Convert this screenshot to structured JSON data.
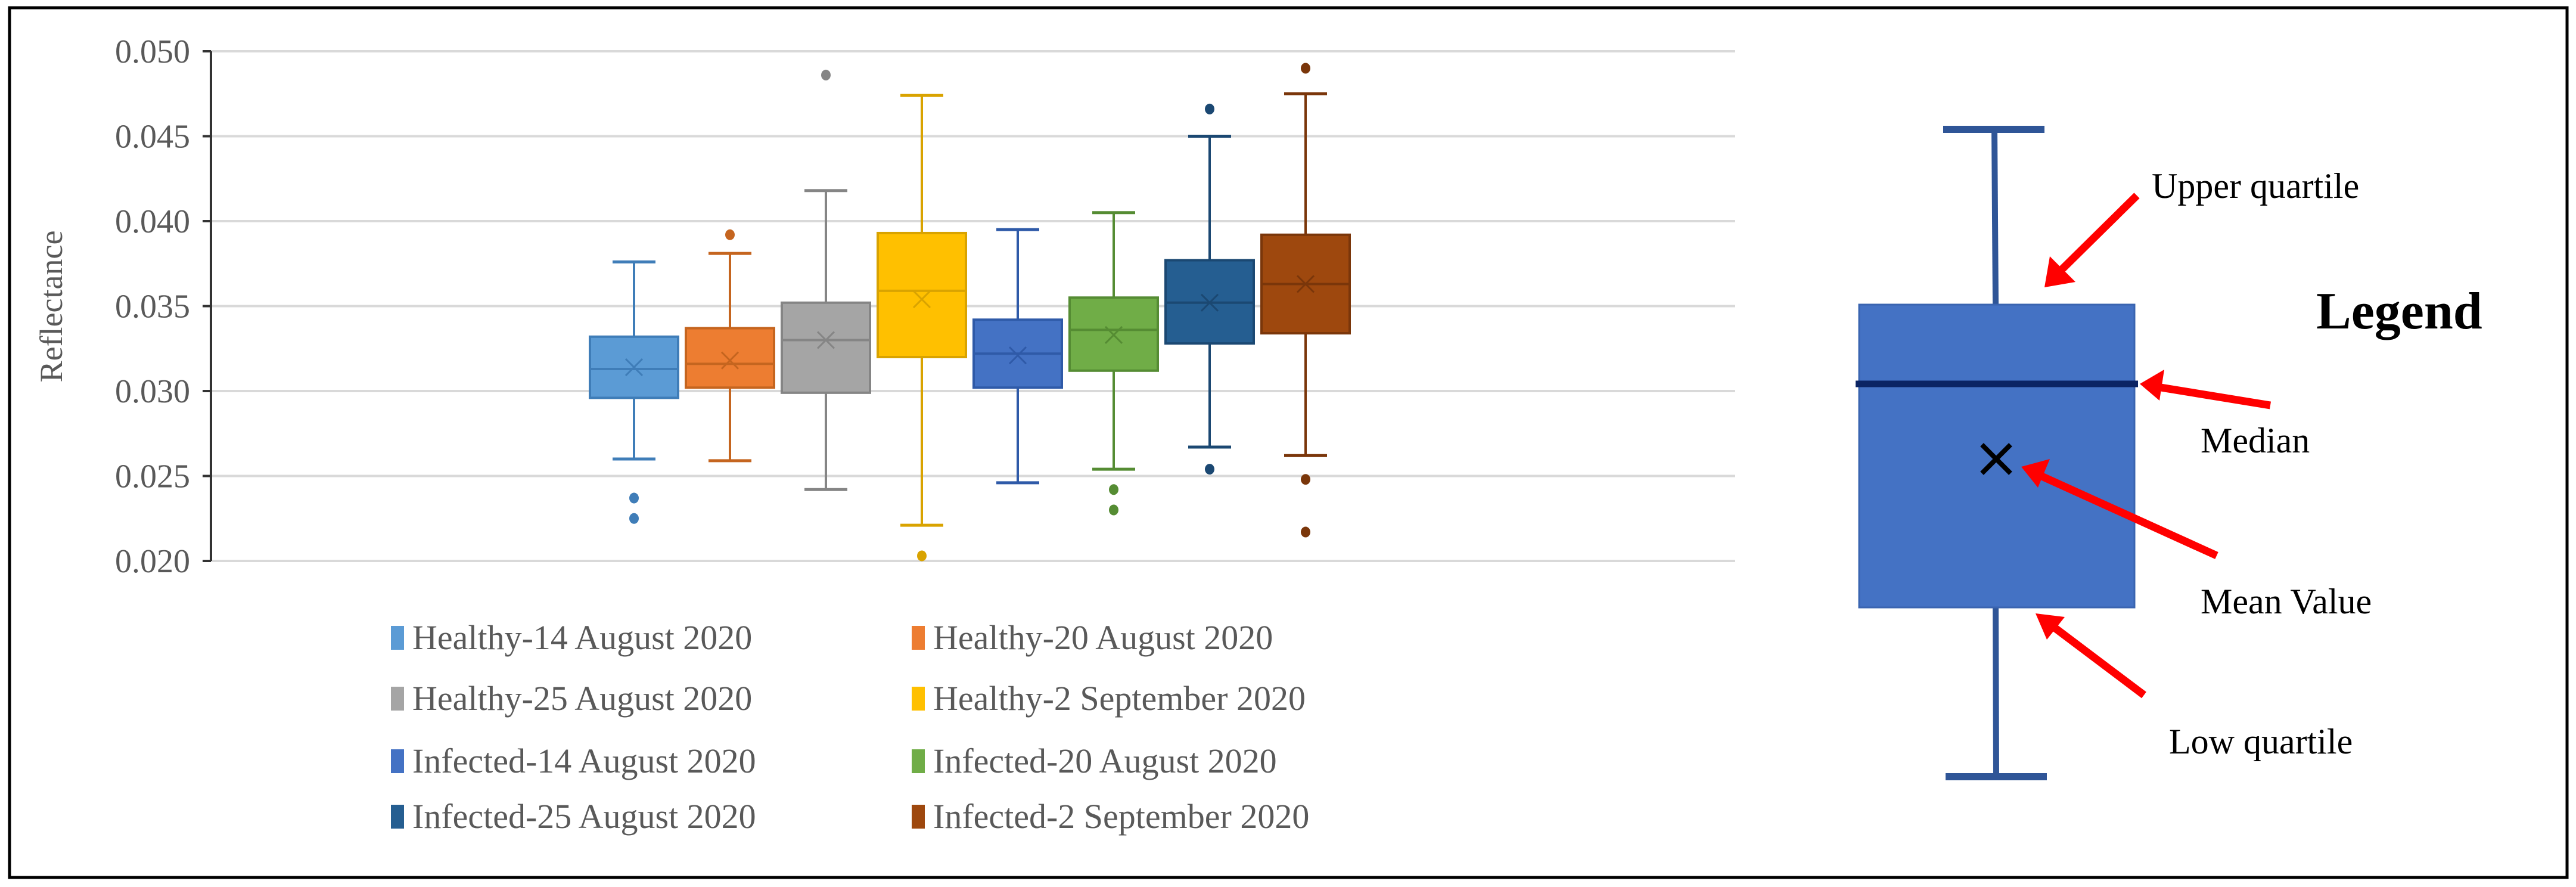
{
  "chart_data": {
    "type": "box",
    "title": "",
    "xlabel": "",
    "ylabel": "Reflectance",
    "ylim": [
      0.02,
      0.05
    ],
    "yticks": [
      "0.050",
      "0.045",
      "0.040",
      "0.035",
      "0.030",
      "0.025",
      "0.020"
    ],
    "grid": true,
    "legend_position": "bottom",
    "series": [
      {
        "name": "Healthy-14 August 2020",
        "color": "#5B9BD5",
        "line": "#3F7DB8",
        "min": 0.026,
        "q1": 0.0296,
        "median": 0.0313,
        "mean": 0.0314,
        "q3": 0.0332,
        "max": 0.0376,
        "outliers": [
          0.0237,
          0.0225
        ]
      },
      {
        "name": "Healthy-20 August 2020",
        "color": "#ED7D31",
        "line": "#C5651F",
        "min": 0.0259,
        "q1": 0.0302,
        "median": 0.0316,
        "mean": 0.0318,
        "q3": 0.0337,
        "max": 0.0381,
        "outliers": [
          0.0392
        ]
      },
      {
        "name": "Healthy-25 August 2020",
        "color": "#A5A5A5",
        "line": "#858585",
        "min": 0.0242,
        "q1": 0.0299,
        "median": 0.033,
        "mean": 0.033,
        "q3": 0.0352,
        "max": 0.0418,
        "outliers": [
          0.0486
        ]
      },
      {
        "name": "Healthy-2 September 2020",
        "color": "#FFC000",
        "line": "#D9A300",
        "min": 0.0221,
        "q1": 0.032,
        "median": 0.0359,
        "mean": 0.0354,
        "q3": 0.0393,
        "max": 0.0474,
        "outliers": [
          0.0203
        ]
      },
      {
        "name": "Infected-14 August 2020",
        "color": "#4472C4",
        "line": "#2F5AA8",
        "min": 0.0246,
        "q1": 0.0302,
        "median": 0.0322,
        "mean": 0.0321,
        "q3": 0.0342,
        "max": 0.0395,
        "outliers": []
      },
      {
        "name": "Infected-20 August 2020",
        "color": "#70AD47",
        "line": "#558C33",
        "min": 0.0254,
        "q1": 0.0312,
        "median": 0.0336,
        "mean": 0.0333,
        "q3": 0.0355,
        "max": 0.0405,
        "outliers": [
          0.0242,
          0.023
        ]
      },
      {
        "name": "Infected-25 August 2020",
        "color": "#255E91",
        "line": "#1B4872",
        "min": 0.0267,
        "q1": 0.0328,
        "median": 0.0352,
        "mean": 0.0352,
        "q3": 0.0377,
        "max": 0.045,
        "outliers": [
          0.0466,
          0.0254
        ]
      },
      {
        "name": "Infected-2 September 2020",
        "color": "#9E480E",
        "line": "#7A360A",
        "min": 0.0262,
        "q1": 0.0334,
        "median": 0.0363,
        "mean": 0.0363,
        "q3": 0.0392,
        "max": 0.0475,
        "outliers": [
          0.049,
          0.0248,
          0.0217
        ]
      }
    ]
  },
  "explanation_legend": {
    "title": "Legend",
    "box_color": "#4472C4",
    "arrow_color": "#FF0000",
    "labels": {
      "upper_quartile": "Upper quartile",
      "median": "Median",
      "mean": "Mean Value",
      "low_quartile": "Low quartile"
    }
  }
}
